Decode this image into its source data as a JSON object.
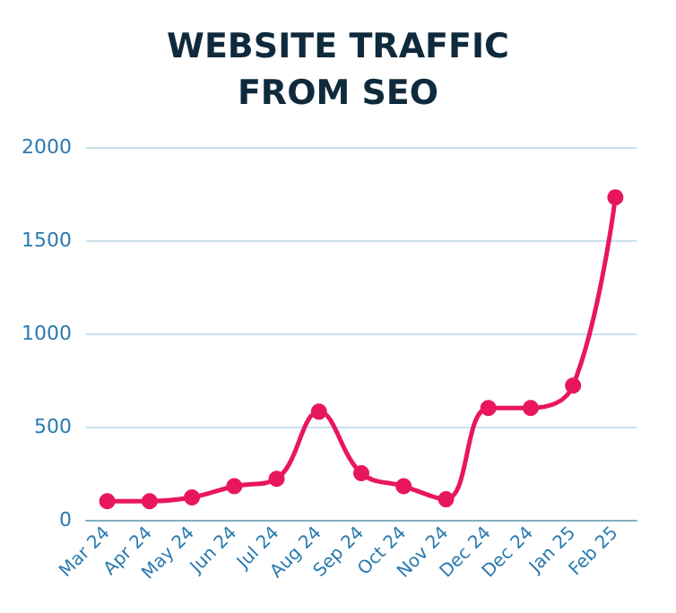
{
  "chart_data": {
    "type": "line",
    "title": "WEBSITE TRAFFIC\nFROM SEO",
    "categories": [
      "Mar 24",
      "Apr 24",
      "May 24",
      "Jun 24",
      "Jul 24",
      "Aug 24",
      "Sep 24",
      "Oct 24",
      "Nov 24",
      "Dec 24",
      "Dec 24",
      "Jan 25",
      "Feb 25"
    ],
    "series": [
      {
        "color": "#e8175d",
        "values": [
          100,
          100,
          120,
          180,
          220,
          580,
          250,
          180,
          110,
          600,
          600,
          720,
          1730
        ]
      }
    ],
    "ylim": [
      0,
      2000
    ],
    "yticks": [
      0,
      500,
      1000,
      1500,
      2000
    ],
    "grid": "y",
    "marker": "circle",
    "line_style": "solid"
  }
}
